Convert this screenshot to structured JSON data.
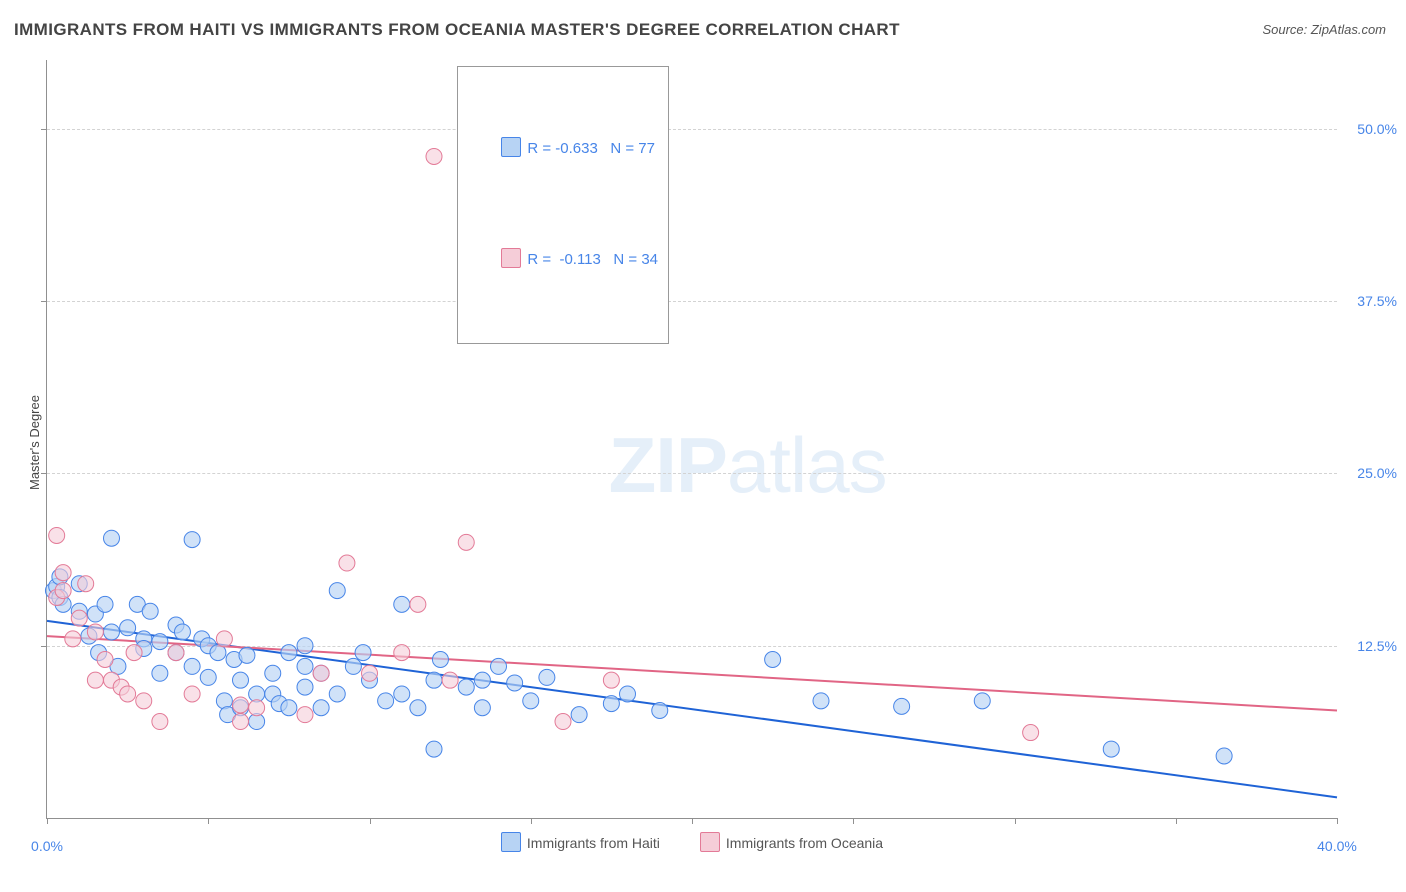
{
  "chart": {
    "title": "IMMIGRANTS FROM HAITI VS IMMIGRANTS FROM OCEANIA MASTER'S DEGREE CORRELATION CHART",
    "source_label": "Source: ZipAtlas.com",
    "y_label": "Master's Degree",
    "watermark_zip": "ZIP",
    "watermark_atlas": "atlas",
    "type": "scatter",
    "xlim": [
      0,
      40
    ],
    "ylim": [
      0,
      55
    ],
    "y_ticks": [
      12.5,
      25.0,
      37.5,
      50.0
    ],
    "y_tick_labels": [
      "12.5%",
      "25.0%",
      "37.5%",
      "50.0%"
    ],
    "x_ticks": [
      0,
      10,
      20,
      30,
      40
    ],
    "x_tick_label_left": "0.0%",
    "x_tick_label_right": "40.0%",
    "grid_color": "#d3d3d3",
    "axis_color": "#909090",
    "background_color": "#ffffff",
    "tick_label_color": "#4785e8"
  },
  "legend": {
    "rows": [
      {
        "swatch_fill": "#b7d3f4",
        "swatch_stroke": "#4785e8",
        "r_label": "R =",
        "r_value": "-0.633",
        "n_label": "N =",
        "n_value": "77"
      },
      {
        "swatch_fill": "#f5cdd8",
        "swatch_stroke": "#e37a97",
        "r_label": "R =",
        "r_value": "-0.113",
        "n_label": "N =",
        "n_value": "34"
      }
    ]
  },
  "bottom_legend": {
    "series1_label": "Immigrants from Haiti",
    "series1_fill": "#b7d3f4",
    "series1_stroke": "#4785e8",
    "series2_label": "Immigrants from Oceania",
    "series2_fill": "#f5cdd8",
    "series2_stroke": "#e37a97"
  },
  "series": [
    {
      "name": "haiti",
      "marker_fill": "#b7d3f4",
      "marker_stroke": "#4785e8",
      "marker_fill_opacity": 0.65,
      "marker_radius": 8,
      "trend_color": "#1f63d6",
      "trend_width": 2,
      "trend": {
        "x1": 0,
        "y1": 14.3,
        "x2": 40,
        "y2": 1.5
      },
      "points": [
        [
          0.2,
          16.5
        ],
        [
          0.3,
          16.8
        ],
        [
          0.4,
          17.5
        ],
        [
          0.4,
          16.0
        ],
        [
          0.5,
          15.5
        ],
        [
          1.0,
          17.0
        ],
        [
          1.0,
          15.0
        ],
        [
          1.3,
          13.2
        ],
        [
          1.5,
          14.8
        ],
        [
          1.6,
          12.0
        ],
        [
          1.8,
          15.5
        ],
        [
          2.0,
          20.3
        ],
        [
          2.0,
          13.5
        ],
        [
          2.2,
          11.0
        ],
        [
          2.5,
          13.8
        ],
        [
          2.8,
          15.5
        ],
        [
          3.0,
          13.0
        ],
        [
          3.0,
          12.3
        ],
        [
          3.2,
          15.0
        ],
        [
          3.5,
          12.8
        ],
        [
          3.5,
          10.5
        ],
        [
          4.0,
          14.0
        ],
        [
          4.0,
          12.0
        ],
        [
          4.2,
          13.5
        ],
        [
          4.5,
          20.2
        ],
        [
          4.5,
          11.0
        ],
        [
          4.8,
          13.0
        ],
        [
          5.0,
          12.5
        ],
        [
          5.0,
          10.2
        ],
        [
          5.3,
          12.0
        ],
        [
          5.5,
          8.5
        ],
        [
          5.6,
          7.5
        ],
        [
          5.8,
          11.5
        ],
        [
          6.0,
          10.0
        ],
        [
          6.0,
          8.0
        ],
        [
          6.2,
          11.8
        ],
        [
          6.5,
          9.0
        ],
        [
          6.5,
          7.0
        ],
        [
          7.0,
          10.5
        ],
        [
          7.0,
          9.0
        ],
        [
          7.2,
          8.3
        ],
        [
          7.5,
          12.0
        ],
        [
          7.5,
          8.0
        ],
        [
          8.0,
          11.0
        ],
        [
          8.0,
          9.5
        ],
        [
          8.0,
          12.5
        ],
        [
          8.5,
          10.5
        ],
        [
          8.5,
          8.0
        ],
        [
          9.0,
          16.5
        ],
        [
          9.0,
          9.0
        ],
        [
          9.5,
          11.0
        ],
        [
          9.8,
          12.0
        ],
        [
          10.0,
          10.0
        ],
        [
          10.5,
          8.5
        ],
        [
          11.0,
          9.0
        ],
        [
          11.0,
          15.5
        ],
        [
          11.5,
          8.0
        ],
        [
          12.0,
          10.0
        ],
        [
          12.0,
          5.0
        ],
        [
          12.2,
          11.5
        ],
        [
          13.0,
          9.5
        ],
        [
          13.5,
          10.0
        ],
        [
          13.5,
          8.0
        ],
        [
          14.0,
          11.0
        ],
        [
          14.5,
          9.8
        ],
        [
          15.0,
          8.5
        ],
        [
          15.5,
          10.2
        ],
        [
          16.5,
          7.5
        ],
        [
          17.5,
          8.3
        ],
        [
          18.0,
          9.0
        ],
        [
          19.0,
          7.8
        ],
        [
          22.5,
          11.5
        ],
        [
          24.0,
          8.5
        ],
        [
          26.5,
          8.1
        ],
        [
          29.0,
          8.5
        ],
        [
          33.0,
          5.0
        ],
        [
          36.5,
          4.5
        ]
      ]
    },
    {
      "name": "oceania",
      "marker_fill": "#f5cdd8",
      "marker_stroke": "#e37a97",
      "marker_fill_opacity": 0.6,
      "marker_radius": 8,
      "trend_color": "#e16585",
      "trend_width": 2,
      "trend": {
        "x1": 0,
        "y1": 13.2,
        "x2": 40,
        "y2": 7.8
      },
      "points": [
        [
          0.3,
          20.5
        ],
        [
          0.3,
          16.0
        ],
        [
          0.5,
          17.8
        ],
        [
          0.5,
          16.5
        ],
        [
          0.8,
          13.0
        ],
        [
          1.0,
          14.5
        ],
        [
          1.2,
          17.0
        ],
        [
          1.5,
          13.5
        ],
        [
          1.5,
          10.0
        ],
        [
          1.8,
          11.5
        ],
        [
          2.0,
          10.0
        ],
        [
          2.3,
          9.5
        ],
        [
          2.5,
          9.0
        ],
        [
          2.7,
          12.0
        ],
        [
          3.0,
          8.5
        ],
        [
          3.5,
          7.0
        ],
        [
          4.0,
          12.0
        ],
        [
          4.5,
          9.0
        ],
        [
          5.5,
          13.0
        ],
        [
          6.0,
          7.0
        ],
        [
          6.0,
          8.2
        ],
        [
          6.5,
          8.0
        ],
        [
          8.0,
          7.5
        ],
        [
          8.5,
          10.5
        ],
        [
          9.3,
          18.5
        ],
        [
          10.0,
          10.5
        ],
        [
          11.0,
          12.0
        ],
        [
          11.5,
          15.5
        ],
        [
          12.5,
          10.0
        ],
        [
          13.0,
          20.0
        ],
        [
          12.0,
          48.0
        ],
        [
          16.0,
          7.0
        ],
        [
          17.5,
          10.0
        ],
        [
          30.5,
          6.2
        ]
      ]
    }
  ]
}
